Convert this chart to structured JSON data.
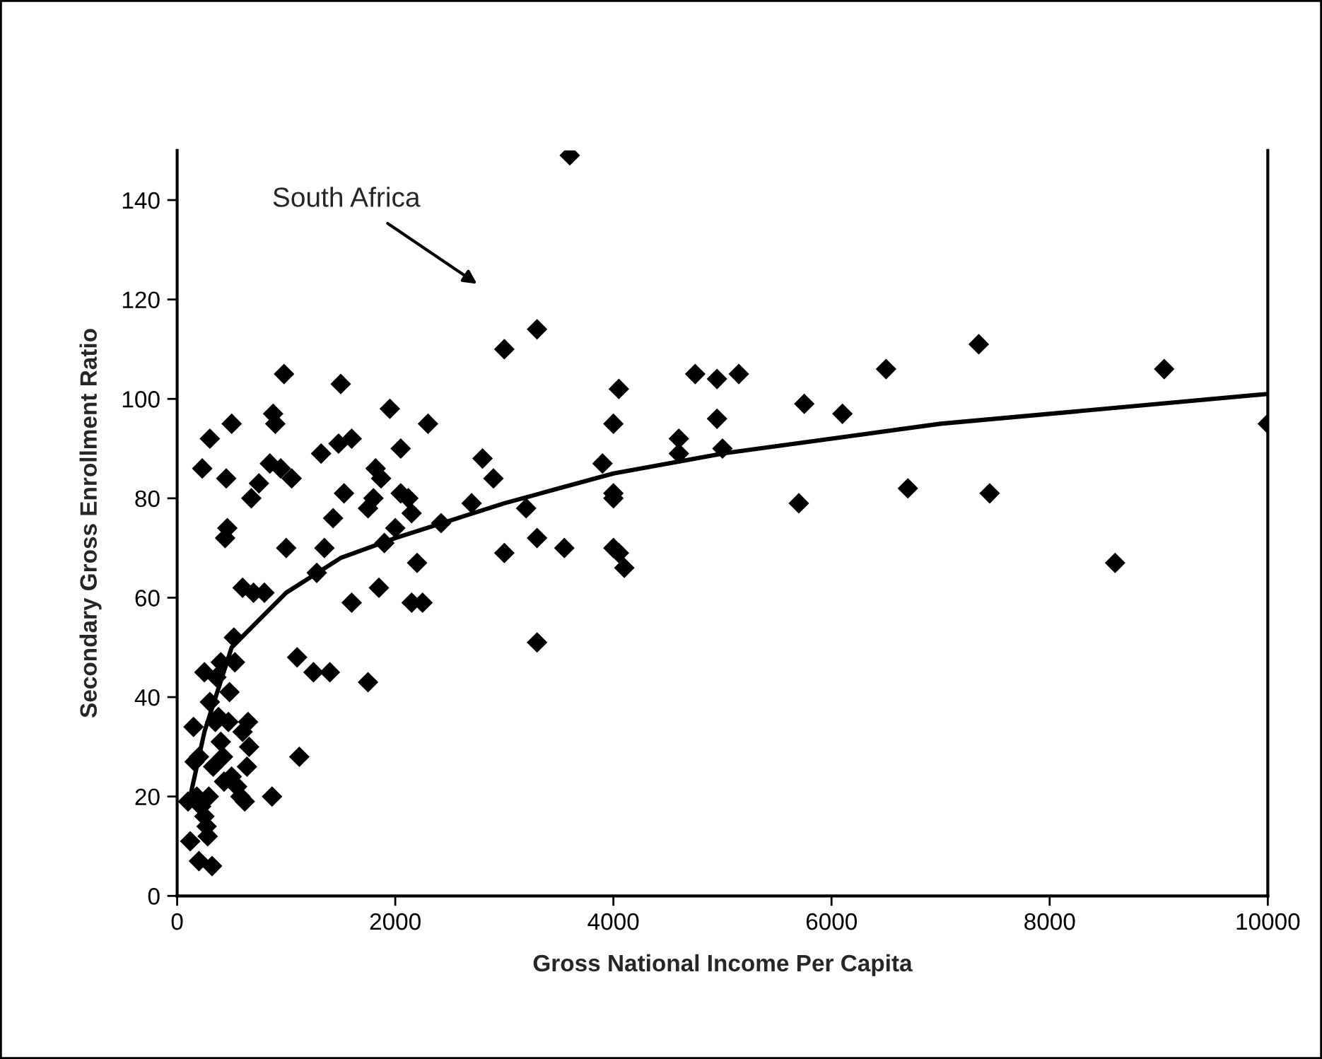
{
  "chart_data": {
    "type": "scatter",
    "xlabel": "Gross National Income Per Capita",
    "ylabel": "Secondary Gross Enrollment Ratio",
    "xlim": [
      0,
      10000
    ],
    "xticks": [
      0,
      2000,
      4000,
      6000,
      8000,
      10000
    ],
    "ylim": [
      0,
      150
    ],
    "yticks": [
      0,
      20,
      40,
      60,
      80,
      100,
      120,
      140
    ],
    "grid": false,
    "legend": false,
    "marker": "diamond",
    "annotations": [
      "South Africa"
    ],
    "series": [
      {
        "color": "#000000",
        "x": [
          100,
          120,
          150,
          160,
          180,
          200,
          200,
          220,
          230,
          250,
          250,
          270,
          280,
          290,
          300,
          300,
          320,
          330,
          350,
          360,
          380,
          400,
          400,
          420,
          430,
          440,
          450,
          460,
          470,
          480,
          500,
          500,
          520,
          530,
          550,
          580,
          600,
          600,
          620,
          640,
          650,
          660,
          680,
          700,
          750,
          800,
          850,
          870,
          880,
          900,
          950,
          980,
          1000,
          1050,
          1100,
          1120,
          1250,
          1280,
          1320,
          1350,
          1400,
          1430,
          1480,
          1500,
          1530,
          1600,
          1600,
          1750,
          1750,
          1800,
          1820,
          1850,
          1870,
          1900,
          1950,
          2000,
          2050,
          2050,
          2120,
          2150,
          2150,
          2200,
          2250,
          2300,
          2420,
          2700,
          2800,
          2900,
          3000,
          3000,
          3200,
          3300,
          3300,
          3300,
          3550,
          3600,
          3900,
          4000,
          4000,
          4000,
          4000,
          4050,
          4050,
          4100,
          4600,
          4600,
          4750,
          4950,
          4950,
          5000,
          5150,
          5700,
          5750,
          6100,
          6500,
          6700,
          7350,
          7450,
          8600,
          9050,
          10000
        ],
        "values": [
          19,
          11,
          34,
          27,
          20,
          28,
          7,
          18,
          86,
          16,
          45,
          14,
          12,
          20,
          92,
          39,
          6,
          26,
          35,
          44,
          36,
          31,
          47,
          28,
          23,
          72,
          84,
          74,
          35,
          41,
          95,
          24,
          52,
          47,
          22,
          20,
          62,
          33,
          19,
          26,
          35,
          30,
          80,
          61,
          83,
          61,
          87,
          20,
          97,
          95,
          86,
          105,
          70,
          84,
          48,
          28,
          45,
          65,
          89,
          70,
          45,
          76,
          91,
          103,
          81,
          92,
          59,
          43,
          78,
          80,
          86,
          62,
          84,
          71,
          98,
          74,
          81,
          90,
          80,
          59,
          77,
          67,
          59,
          95,
          75,
          79,
          88,
          84,
          110,
          69,
          78,
          114,
          51,
          72,
          70,
          149,
          87,
          81,
          80,
          70,
          95,
          102,
          69,
          66,
          92,
          89,
          105,
          104,
          96,
          90,
          105,
          79,
          99,
          97,
          106,
          82,
          111,
          81,
          67,
          106,
          95
        ]
      },
      {
        "type": "line",
        "color": "#000000",
        "line_style": "solid",
        "marker": "none",
        "x": [
          100,
          250,
          500,
          1000,
          1500,
          2000,
          3000,
          3500,
          4000,
          5000,
          6000,
          7000,
          8000,
          9000,
          10000
        ],
        "values": [
          18,
          33,
          50,
          61,
          68,
          72,
          79,
          82,
          85,
          89,
          92,
          95,
          97,
          99,
          101
        ]
      }
    ]
  }
}
